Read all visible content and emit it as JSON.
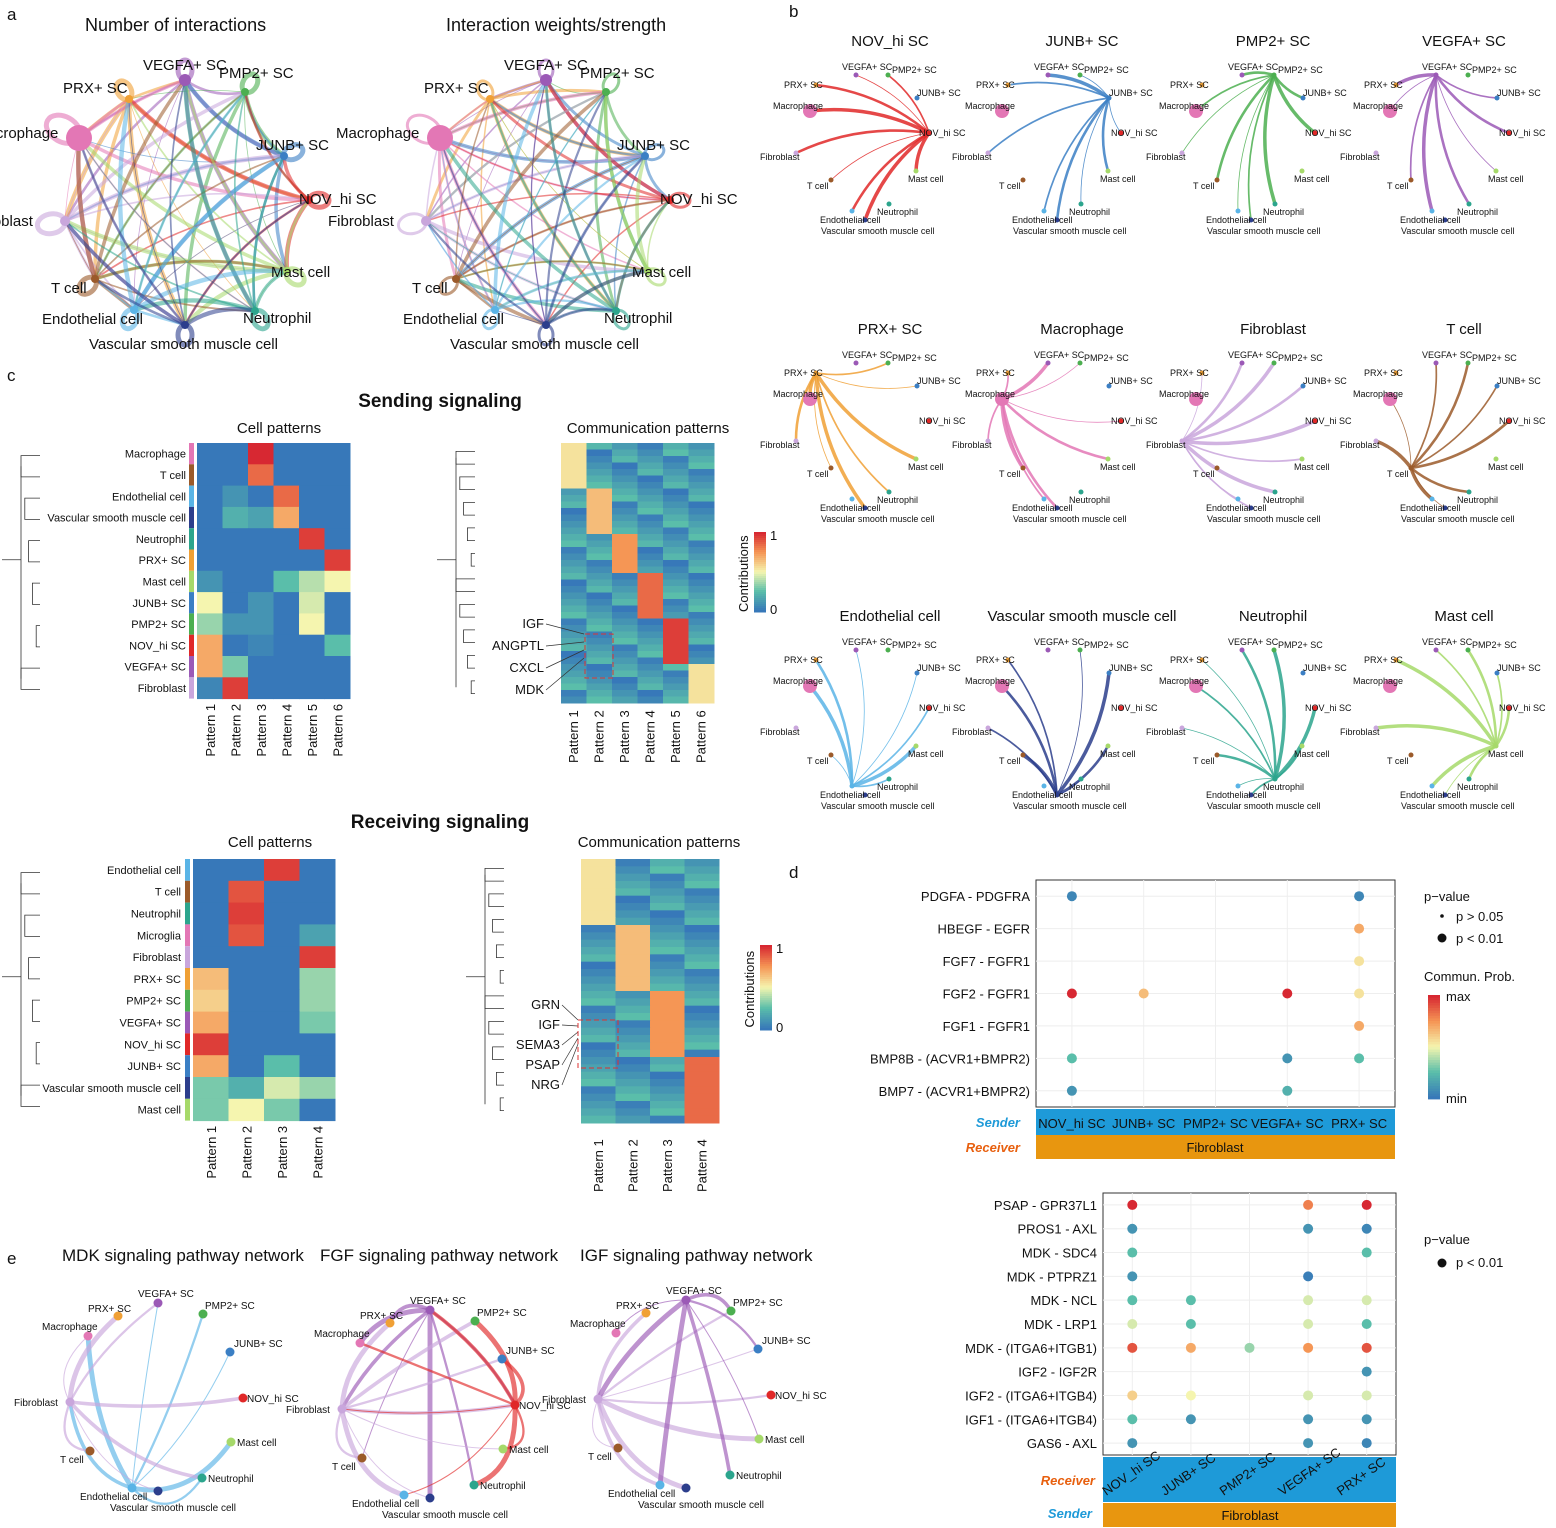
{
  "panels": {
    "a": "a",
    "b": "b",
    "c": "c",
    "d": "d",
    "e": "e"
  },
  "colors": {
    "Macrophage": "#e377b5",
    "PRX+ SC": "#f0a035",
    "VEGFA+ SC": "#9b59b6",
    "PMP2+ SC": "#4caf50",
    "JUNB+ SC": "#3b7fc4",
    "NOV_hi SC": "#e02828",
    "Mast cell": "#a6d96a",
    "Neutrophil": "#2ca58d",
    "Vascular smooth muscle cell": "#2c3e8c",
    "Endothelial cell": "#5ab4e6",
    "T cell": "#9b5a2a",
    "Fibroblast": "#c9a6dc",
    "Microglia": "#e377b5"
  },
  "panel_a": {
    "titles": [
      "Number of interactions",
      "Interaction weights/strength"
    ],
    "nodes": [
      "VEGFA+ SC",
      "PMP2+ SC",
      "PRX+ SC",
      "Macrophage",
      "JUNB+ SC",
      "NOV_hi SC",
      "Fibroblast",
      "Mast cell",
      "T cell",
      "Neutrophil",
      "Endothelial cell",
      "Vascular smooth muscle cell"
    ]
  },
  "panel_b": {
    "titles": [
      "NOV_hi SC",
      "JUNB+ SC",
      "PMP2+ SC",
      "VEGFA+ SC",
      "PRX+ SC",
      "Macrophage",
      "Fibroblast",
      "T cell",
      "Endothelial cell",
      "Vascular smooth muscle cell",
      "Neutrophil",
      "Mast cell"
    ]
  },
  "panel_c": {
    "sending_title": "Sending signaling",
    "receiving_title": "Receiving signaling",
    "cell_patterns_title": "Cell patterns",
    "comm_patterns_title": "Communication patterns",
    "contrib_label": "Contributions",
    "legend_max": "1",
    "legend_min": "0",
    "sending_rows": [
      "Macrophage",
      "T cell",
      "Endothelial cell",
      "Vascular smooth muscle cell",
      "Neutrophil",
      "PRX+ SC",
      "Mast cell",
      "JUNB+ SC",
      "PMP2+ SC",
      "NOV_hi SC",
      "VEGFA+ SC",
      "Fibroblast"
    ],
    "sending_cols": [
      "Pattern 1",
      "Pattern 2",
      "Pattern 3",
      "Pattern 4",
      "Pattern 5",
      "Pattern 6"
    ],
    "sending_pathways": [
      "IGF",
      "ANGPTL",
      "CXCL",
      "MDK"
    ],
    "receiving_rows": [
      "Endothelial cell",
      "T cell",
      "Neutrophil",
      "Microglia",
      "Fibroblast",
      "PRX+ SC",
      "PMP2+ SC",
      "VEGFA+ SC",
      "NOV_hi SC",
      "JUNB+ SC",
      "Vascular smooth muscle cell",
      "Mast cell"
    ],
    "receiving_cols": [
      "Pattern 1",
      "Pattern 2",
      "Pattern 3",
      "Pattern 4"
    ],
    "receiving_pathways": [
      "GRN",
      "IGF",
      "SEMA3",
      "PSAP",
      "NRG"
    ]
  },
  "panel_d": {
    "top": {
      "rows": [
        "PDGFA - PDGFRA",
        "HBEGF - EGFR",
        "FGF7 - FGFR1",
        "FGF2 - FGFR1",
        "FGF1 - FGFR1",
        "BMP8B - (ACVR1+BMPR2)",
        "BMP7 - (ACVR1+BMPR2)"
      ],
      "cols": [
        "NOV_hi SC",
        "JUNB+ SC",
        "PMP2+ SC",
        "VEGFA+ SC",
        "PRX+ SC"
      ],
      "sender_label": "Sender",
      "receiver_label": "Receiver",
      "receiver_value": "Fibroblast",
      "pvalue_title": "p−value",
      "pvalue_items": [
        "p > 0.05",
        "p < 0.01"
      ],
      "commun_title": "Commun. Prob.",
      "commun_max": "max",
      "commun_min": "min"
    },
    "bottom": {
      "rows": [
        "PSAP - GPR37L1",
        "PROS1 - AXL",
        "MDK - SDC4",
        "MDK - PTPRZ1",
        "MDK - NCL",
        "MDK - LRP1",
        "MDK - (ITGA6+ITGB1)",
        "IGF2 - IGF2R",
        "IGF2 - (ITGA6+ITGB4)",
        "IGF1 - (ITGA6+ITGB4)",
        "GAS6 - AXL"
      ],
      "cols": [
        "NOV_hi SC",
        "JUNB+ SC",
        "PMP2+ SC",
        "VEGFA+ SC",
        "PRX+ SC"
      ],
      "receiver_label": "Receiver",
      "sender_label": "Sender",
      "sender_value": "Fibroblast",
      "pvalue_title": "p−value",
      "pvalue_items": [
        "p < 0.01"
      ]
    }
  },
  "panel_e": {
    "titles": [
      "MDK signaling pathway network",
      "FGF signaling pathway network",
      "IGF signaling pathway network"
    ]
  }
}
